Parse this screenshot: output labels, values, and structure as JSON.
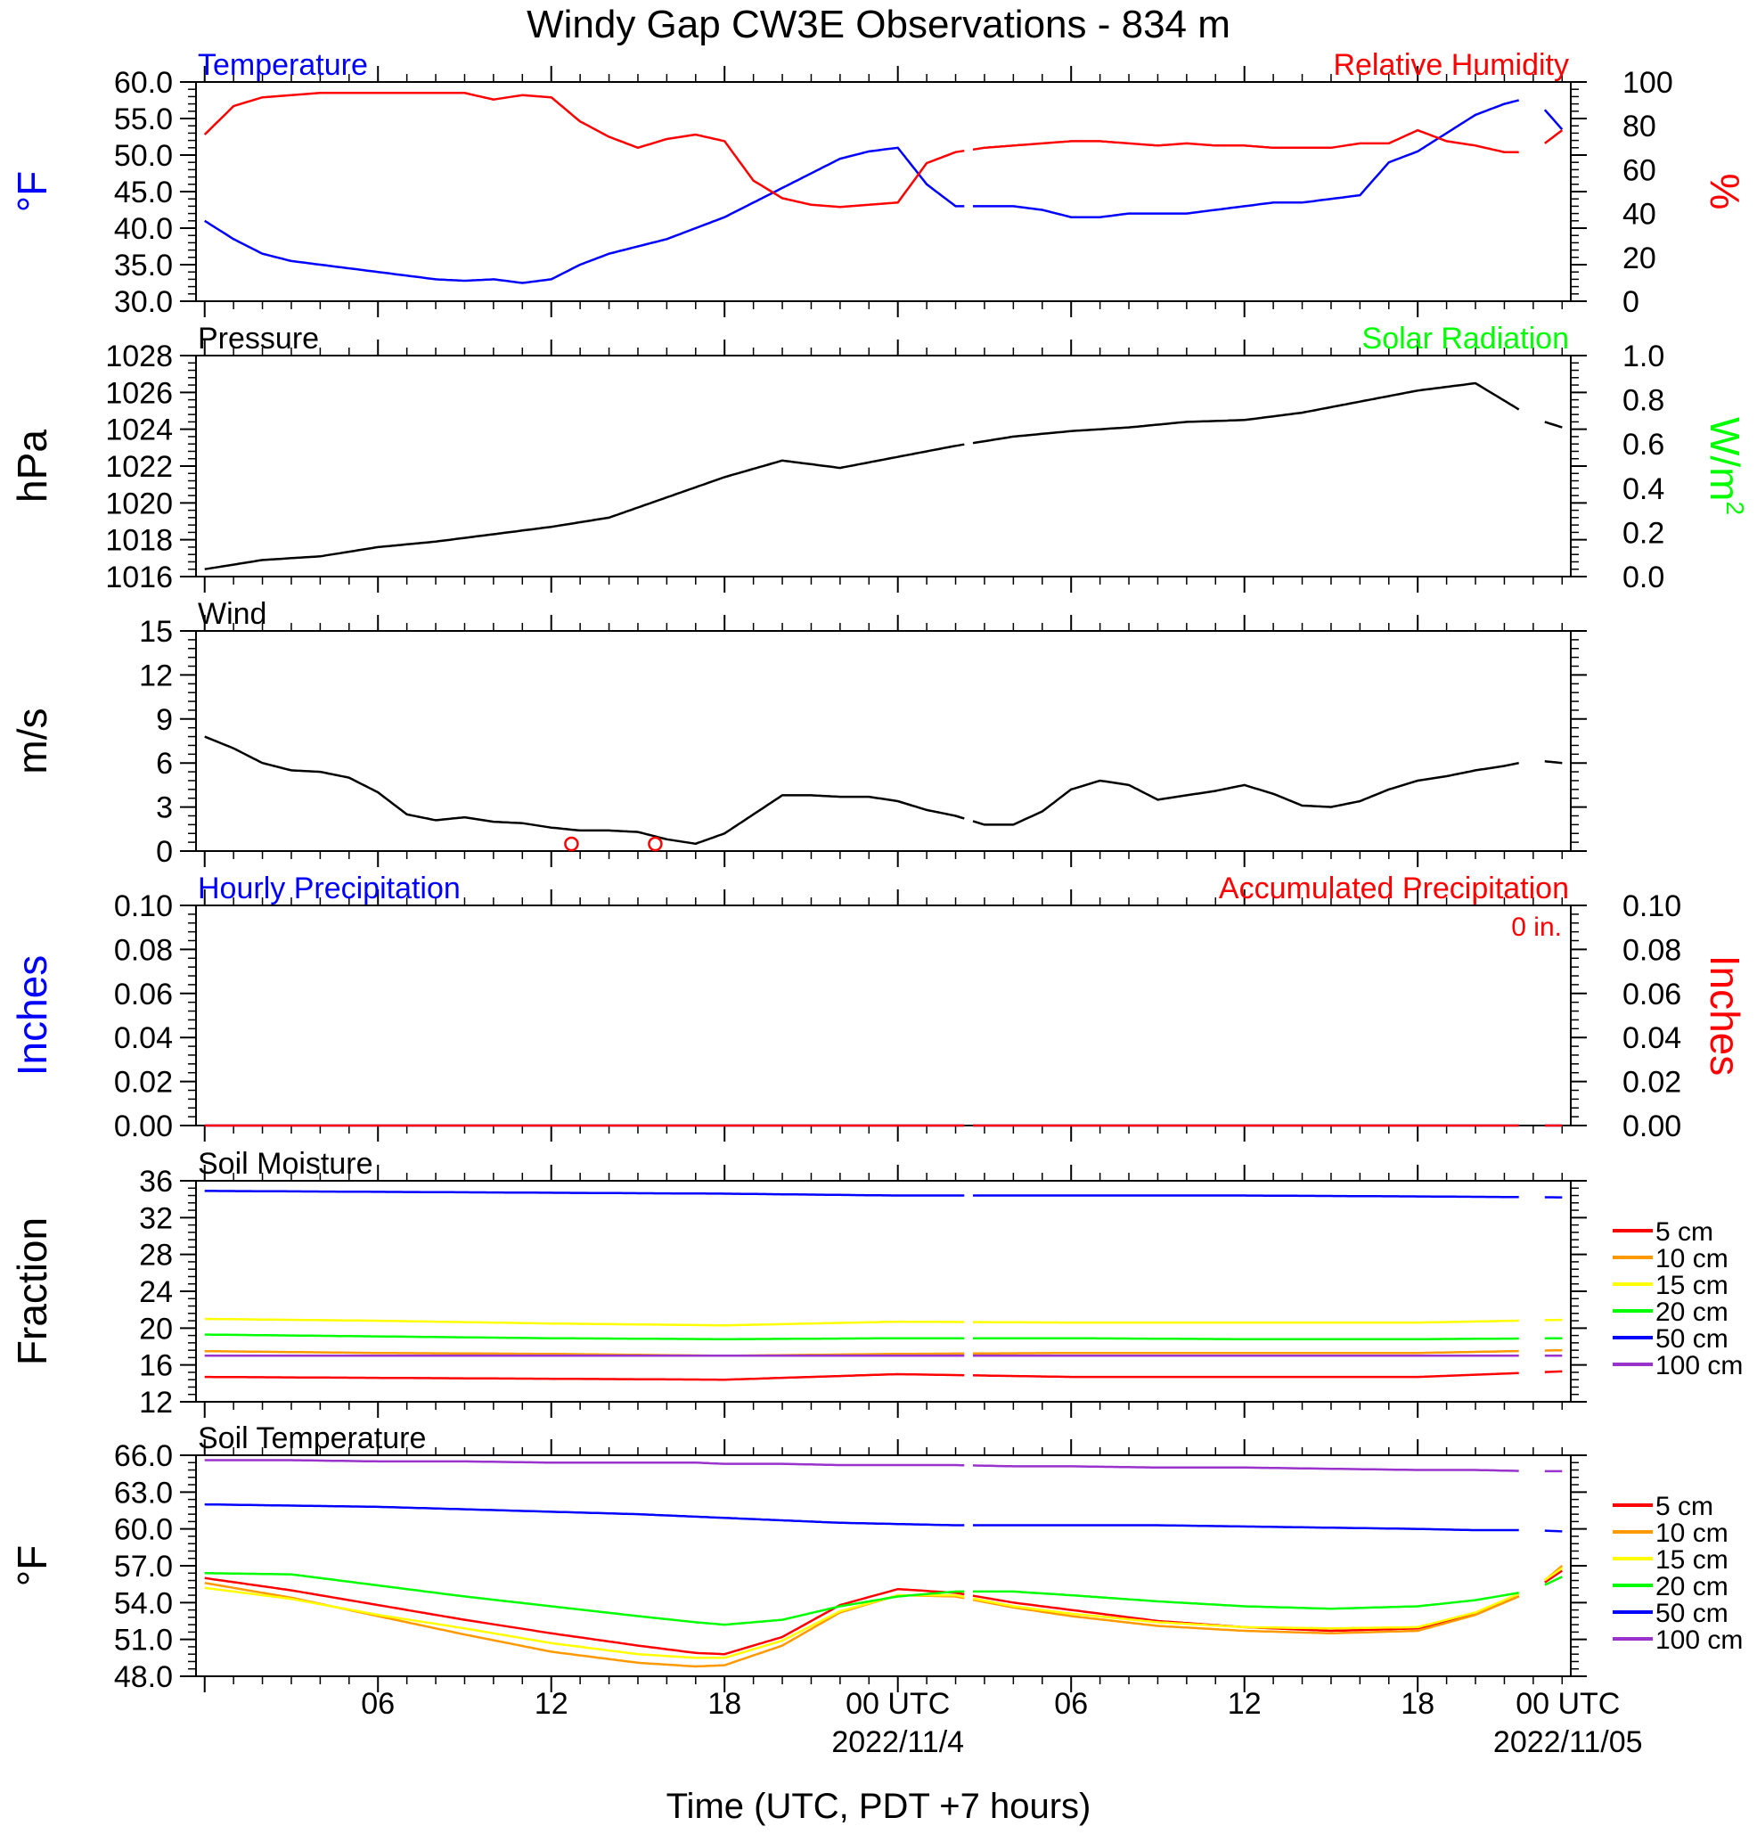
{
  "title": "Windy Gap CW3E Observations - 834 m",
  "x_axis": {
    "label": "Time (UTC, PDT +7 hours)",
    "ticks": [
      "06",
      "12",
      "18",
      "00 UTC",
      "06",
      "12",
      "18",
      "00 UTC"
    ],
    "date_labels": [
      "2022/11/4",
      "2022/11/05"
    ]
  },
  "chart_data": [
    {
      "panel": "temperature_humidity",
      "type": "line",
      "left_title": "Temperature",
      "right_title": "Relative Humidity",
      "left_unit": "°F",
      "right_unit": "%",
      "left_ylim": [
        30,
        60
      ],
      "left_ticks": [
        "30.0",
        "35.0",
        "40.0",
        "45.0",
        "50.0",
        "55.0",
        "60.0"
      ],
      "right_ylim": [
        0,
        100
      ],
      "right_ticks": [
        "0",
        "20",
        "40",
        "60",
        "80",
        "100"
      ],
      "x_hours": [
        0,
        1,
        2,
        3,
        4,
        5,
        6,
        7,
        8,
        9,
        10,
        11,
        12,
        13,
        14,
        15,
        16,
        17,
        18,
        19,
        20,
        21,
        22,
        23,
        24,
        25,
        26,
        27,
        28,
        29,
        30,
        31,
        32,
        33,
        34,
        35,
        36,
        37,
        38,
        39,
        40,
        41,
        42,
        43,
        44,
        45,
        46,
        47
      ],
      "series": [
        {
          "axis": "left",
          "color": "#0000ff",
          "values": [
            41,
            38.5,
            36.5,
            35.5,
            35,
            34.5,
            34,
            33.5,
            33,
            32.8,
            33,
            32.5,
            33,
            35,
            36.5,
            37.5,
            38.5,
            40,
            41.5,
            43.5,
            45.5,
            47.5,
            49.5,
            50.5,
            51,
            46,
            43,
            43,
            43,
            42.5,
            41.5,
            41.5,
            42,
            42,
            42,
            42.5,
            43,
            43.5,
            43.5,
            44,
            44.5,
            49,
            50.5,
            53,
            55.5,
            57,
            58,
            53.5
          ]
        },
        {
          "axis": "right",
          "color": "#ff0000",
          "values": [
            76,
            89,
            93,
            94,
            95,
            95,
            95,
            95,
            95,
            95,
            92,
            94,
            93,
            82,
            75,
            70,
            74,
            76,
            73,
            55,
            47,
            44,
            43,
            44,
            45,
            63,
            68,
            70,
            71,
            72,
            73,
            73,
            72,
            71,
            72,
            71,
            71,
            70,
            70,
            70,
            72,
            72,
            78,
            73,
            71,
            68,
            68,
            78
          ]
        }
      ]
    },
    {
      "panel": "pressure_solar",
      "type": "line",
      "left_title": "Pressure",
      "right_title": "Solar Radiation",
      "left_unit": "hPa",
      "right_unit": "W/m",
      "right_unit_sup": "2",
      "left_ylim": [
        1016,
        1028
      ],
      "left_ticks": [
        "1016",
        "1018",
        "1020",
        "1022",
        "1024",
        "1026",
        "1028"
      ],
      "right_ylim": [
        0,
        1
      ],
      "right_ticks": [
        "0.0",
        "0.2",
        "0.4",
        "0.6",
        "0.8",
        "1.0"
      ],
      "x_hours": [
        0,
        2,
        4,
        6,
        8,
        10,
        12,
        14,
        16,
        18,
        20,
        22,
        24,
        26,
        28,
        30,
        32,
        34,
        36,
        38,
        40,
        42,
        44,
        46,
        47
      ],
      "series": [
        {
          "axis": "left",
          "color": "#000000",
          "values": [
            1016.4,
            1016.9,
            1017.1,
            1017.6,
            1017.9,
            1018.3,
            1018.7,
            1019.2,
            1020.3,
            1021.4,
            1022.3,
            1021.9,
            1022.5,
            1023.1,
            1023.6,
            1023.9,
            1024.1,
            1024.4,
            1024.5,
            1024.9,
            1025.5,
            1026.1,
            1026.5,
            1024.6,
            1024.1
          ]
        }
      ]
    },
    {
      "panel": "wind",
      "type": "line",
      "left_title": "Wind",
      "left_unit": "m/s",
      "left_ylim": [
        0,
        15
      ],
      "left_ticks": [
        "0",
        "3",
        "6",
        "9",
        "12",
        "15"
      ],
      "x_hours": [
        0,
        1,
        2,
        3,
        4,
        5,
        6,
        7,
        8,
        9,
        10,
        11,
        12,
        13,
        14,
        15,
        16,
        17,
        18,
        19,
        20,
        21,
        22,
        23,
        24,
        25,
        26,
        27,
        28,
        29,
        30,
        31,
        32,
        33,
        34,
        35,
        36,
        37,
        38,
        39,
        40,
        41,
        42,
        43,
        44,
        45,
        46,
        47
      ],
      "series": [
        {
          "axis": "left",
          "color": "#000000",
          "values": [
            7.8,
            7,
            6,
            5.5,
            5.4,
            5,
            4,
            2.5,
            2.1,
            2.3,
            2,
            1.9,
            1.6,
            1.4,
            1.4,
            1.3,
            0.8,
            0.5,
            1.2,
            2.5,
            3.8,
            3.8,
            3.7,
            3.7,
            3.4,
            2.8,
            2.4,
            1.8,
            1.8,
            2.7,
            4.2,
            4.8,
            4.5,
            3.5,
            3.8,
            4.1,
            4.5,
            3.9,
            3.1,
            3,
            3.4,
            4.2,
            4.8,
            5.1,
            5.5,
            5.8,
            6.2,
            6
          ]
        }
      ],
      "calm_markers_hours": [
        12.7,
        15.6
      ]
    },
    {
      "panel": "precipitation",
      "type": "line",
      "left_title": "Hourly Precipitation",
      "right_title": "Accumulated Precipitation",
      "total_label": "0 in.",
      "left_unit": "Inches",
      "right_unit": "Inches",
      "left_ylim": [
        0,
        0.1
      ],
      "left_ticks": [
        "0.00",
        "0.02",
        "0.04",
        "0.06",
        "0.08",
        "0.10"
      ],
      "right_ylim": [
        0,
        0.1
      ],
      "right_ticks": [
        "0.00",
        "0.02",
        "0.04",
        "0.06",
        "0.08",
        "0.10"
      ],
      "x_hours": [
        0,
        47
      ],
      "series": [
        {
          "axis": "left",
          "color": "#0000ff",
          "values": [
            0,
            0
          ]
        },
        {
          "axis": "right",
          "color": "#ff0000",
          "values": [
            0,
            0
          ]
        }
      ]
    },
    {
      "panel": "soil_moisture",
      "type": "line",
      "left_title": "Soil Moisture",
      "left_unit": "Fraction",
      "left_ylim": [
        12,
        36
      ],
      "left_ticks": [
        "12",
        "16",
        "20",
        "24",
        "28",
        "32",
        "36"
      ],
      "x_hours": [
        0,
        6,
        12,
        18,
        24,
        30,
        36,
        42,
        47
      ],
      "series": [
        {
          "name": "5 cm",
          "color": "#ff0000",
          "values": [
            14.7,
            14.6,
            14.5,
            14.4,
            15.0,
            14.7,
            14.7,
            14.7,
            15.3
          ]
        },
        {
          "name": "10 cm",
          "color": "#ff9900",
          "values": [
            17.5,
            17.3,
            17.2,
            17.0,
            17.2,
            17.3,
            17.3,
            17.3,
            17.6
          ]
        },
        {
          "name": "15 cm",
          "color": "#ffff00",
          "values": [
            21.0,
            20.8,
            20.5,
            20.3,
            20.7,
            20.6,
            20.6,
            20.6,
            20.9
          ]
        },
        {
          "name": "20 cm",
          "color": "#00ff00",
          "values": [
            19.3,
            19.1,
            18.9,
            18.8,
            18.9,
            18.9,
            18.8,
            18.8,
            18.9
          ]
        },
        {
          "name": "50 cm",
          "color": "#0000ff",
          "values": [
            34.9,
            34.8,
            34.7,
            34.6,
            34.4,
            34.4,
            34.4,
            34.3,
            34.2
          ]
        },
        {
          "name": "100 cm",
          "color": "#9933cc",
          "values": [
            17.0,
            17.0,
            17.0,
            17.0,
            17.0,
            17.0,
            17.0,
            17.0,
            17.0
          ]
        }
      ]
    },
    {
      "panel": "soil_temperature",
      "type": "line",
      "left_title": "Soil Temperature",
      "left_unit": "°F",
      "left_ylim": [
        48,
        66
      ],
      "left_ticks": [
        "48.0",
        "51.0",
        "54.0",
        "57.0",
        "60.0",
        "63.0",
        "66.0"
      ],
      "x_hours": [
        0,
        3,
        6,
        9,
        12,
        15,
        17,
        18,
        20,
        22,
        24,
        26,
        28,
        30,
        33,
        36,
        39,
        42,
        44,
        46,
        47
      ],
      "series": [
        {
          "name": "5 cm",
          "color": "#ff0000",
          "values": [
            56.0,
            55.0,
            53.8,
            52.6,
            51.5,
            50.5,
            49.9,
            49.8,
            51.2,
            53.8,
            55.1,
            54.8,
            54.0,
            53.4,
            52.5,
            52.0,
            51.7,
            51.9,
            53.1,
            55.0,
            56.6
          ]
        },
        {
          "name": "10 cm",
          "color": "#ff9900",
          "values": [
            55.6,
            54.4,
            52.9,
            51.4,
            50.0,
            49.1,
            48.8,
            48.9,
            50.5,
            53.2,
            54.6,
            54.5,
            53.6,
            52.9,
            52.1,
            51.7,
            51.5,
            51.7,
            53.0,
            55.0,
            57.0
          ]
        },
        {
          "name": "15 cm",
          "color": "#ffff00",
          "values": [
            55.2,
            54.3,
            53.0,
            51.9,
            50.7,
            49.8,
            49.5,
            49.5,
            50.9,
            53.3,
            54.6,
            54.6,
            53.7,
            53.1,
            52.4,
            52.0,
            51.9,
            52.0,
            53.2,
            55.2,
            56.8
          ]
        },
        {
          "name": "20 cm",
          "color": "#00ff00",
          "values": [
            56.4,
            56.3,
            55.4,
            54.5,
            53.7,
            52.9,
            52.4,
            52.2,
            52.6,
            53.7,
            54.5,
            54.9,
            54.9,
            54.6,
            54.1,
            53.7,
            53.5,
            53.7,
            54.2,
            55.0,
            56.1
          ]
        },
        {
          "name": "50 cm",
          "color": "#0000ff",
          "values": [
            62.0,
            61.9,
            61.8,
            61.6,
            61.4,
            61.2,
            61.0,
            60.9,
            60.7,
            60.5,
            60.4,
            60.3,
            60.3,
            60.3,
            60.3,
            60.2,
            60.1,
            60.0,
            59.9,
            59.9,
            59.8
          ]
        },
        {
          "name": "100 cm",
          "color": "#9933cc",
          "values": [
            65.6,
            65.6,
            65.5,
            65.5,
            65.4,
            65.4,
            65.4,
            65.3,
            65.3,
            65.2,
            65.2,
            65.2,
            65.1,
            65.1,
            65.0,
            65.0,
            64.9,
            64.8,
            64.8,
            64.7,
            64.7
          ]
        }
      ]
    }
  ]
}
